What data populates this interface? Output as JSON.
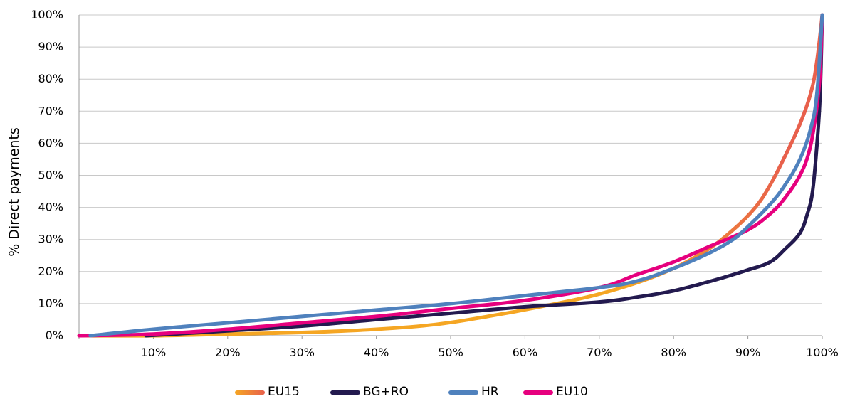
{
  "chart_data": {
    "type": "line",
    "title": "",
    "xlabel": "",
    "ylabel": "% Direct payments",
    "xlim": [
      0,
      100
    ],
    "ylim": [
      0,
      100
    ],
    "x_ticks": [
      "10%",
      "20%",
      "30%",
      "40%",
      "50%",
      "60%",
      "70%",
      "80%",
      "90%",
      "100%"
    ],
    "y_ticks": [
      "0%",
      "10%",
      "20%",
      "30%",
      "40%",
      "50%",
      "60%",
      "70%",
      "80%",
      "90%",
      "100%"
    ],
    "grid": "horizontal",
    "legend_position": "bottom",
    "series": [
      {
        "name": "EU15",
        "color": "#f5a623",
        "color_end": "#e8604c",
        "points": [
          [
            0,
            0
          ],
          [
            10,
            0
          ],
          [
            20,
            0.5
          ],
          [
            30,
            1
          ],
          [
            40,
            2
          ],
          [
            48,
            3.5
          ],
          [
            55,
            6
          ],
          [
            62,
            9
          ],
          [
            70,
            13
          ],
          [
            78,
            19
          ],
          [
            84,
            26
          ],
          [
            88,
            33
          ],
          [
            91,
            40
          ],
          [
            93,
            47
          ],
          [
            95,
            56
          ],
          [
            97,
            66
          ],
          [
            98.5,
            76
          ],
          [
            99.3,
            86
          ],
          [
            100,
            100
          ]
        ]
      },
      {
        "name": "BG+RO",
        "color": "#231a4f",
        "points": [
          [
            9,
            0
          ],
          [
            20,
            1.5
          ],
          [
            30,
            3
          ],
          [
            40,
            5
          ],
          [
            50,
            7
          ],
          [
            60,
            9
          ],
          [
            70,
            10.5
          ],
          [
            75,
            12
          ],
          [
            80,
            14
          ],
          [
            85,
            17
          ],
          [
            90,
            20.5
          ],
          [
            93,
            23
          ],
          [
            95,
            27
          ],
          [
            97,
            32
          ],
          [
            98,
            38
          ],
          [
            98.7,
            45
          ],
          [
            99.3,
            60
          ],
          [
            99.7,
            75
          ],
          [
            100,
            100
          ]
        ]
      },
      {
        "name": "HR",
        "color": "#4f81bd",
        "points": [
          [
            1.5,
            0
          ],
          [
            10,
            2
          ],
          [
            20,
            4
          ],
          [
            30,
            6
          ],
          [
            40,
            8
          ],
          [
            50,
            10
          ],
          [
            60,
            12.5
          ],
          [
            70,
            15
          ],
          [
            75,
            17
          ],
          [
            80,
            21
          ],
          [
            85,
            26
          ],
          [
            88,
            30
          ],
          [
            90,
            34
          ],
          [
            93,
            41
          ],
          [
            95,
            47
          ],
          [
            97,
            55
          ],
          [
            98.5,
            65
          ],
          [
            99.3,
            76
          ],
          [
            100,
            100
          ]
        ]
      },
      {
        "name": "EU10",
        "color": "#e6007e",
        "points": [
          [
            0,
            0
          ],
          [
            10,
            0.5
          ],
          [
            20,
            2
          ],
          [
            30,
            4
          ],
          [
            40,
            6
          ],
          [
            50,
            8.5
          ],
          [
            60,
            11
          ],
          [
            70,
            15
          ],
          [
            75,
            19
          ],
          [
            80,
            23
          ],
          [
            85,
            28
          ],
          [
            90,
            33
          ],
          [
            93,
            38
          ],
          [
            95,
            43
          ],
          [
            97,
            50
          ],
          [
            98.3,
            58
          ],
          [
            99.2,
            70
          ],
          [
            99.7,
            82
          ],
          [
            100,
            100
          ]
        ]
      }
    ]
  }
}
